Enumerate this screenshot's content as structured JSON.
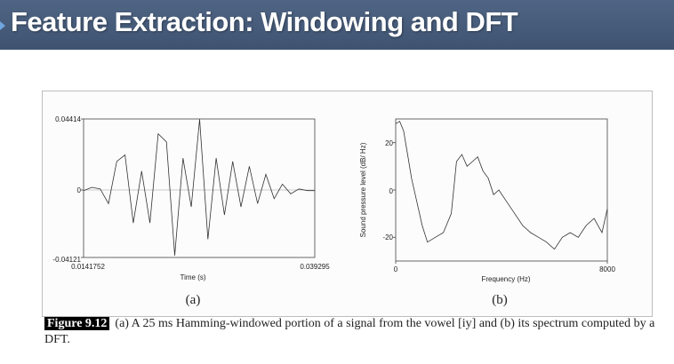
{
  "slide": {
    "title": "Feature Extraction: Windowing and DFT",
    "colors": {
      "title_bar": "#44597a",
      "title_text": "#ffffff"
    }
  },
  "figure": {
    "label": "Figure 9.12",
    "caption": "(a) A 25 ms Hamming-windowed portion of a signal from the vowel [iy] and (b) its spectrum computed by a DFT.",
    "panel_a_label": "(a)",
    "panel_b_label": "(b)"
  },
  "chart_data": [
    {
      "type": "line",
      "title": "",
      "xlabel": "Time (s)",
      "ylabel": "",
      "xlim": [
        0.0141752,
        0.039295
      ],
      "ylim": [
        -0.04121,
        0.04414
      ],
      "x_tick_labels": [
        "0.0141752",
        "0.039295"
      ],
      "y_tick_labels": [
        "0.04414",
        "0",
        "-0.04121"
      ],
      "grid": false,
      "series": [
        {
          "x": [
            0.01418,
            0.01508,
            0.01598,
            0.01688,
            0.01778,
            0.01868,
            0.01958,
            0.02048,
            0.02138,
            0.02228,
            0.02318,
            0.02408,
            0.02498,
            0.02588,
            0.02678,
            0.02768,
            0.02858,
            0.02948,
            0.03038,
            0.03128,
            0.03218,
            0.03308,
            0.03398,
            0.03488,
            0.03578,
            0.03668,
            0.03758,
            0.03848,
            0.0393
          ],
          "y": [
            0.0,
            0.002,
            0.001,
            -0.008,
            0.018,
            0.022,
            -0.02,
            0.012,
            -0.02,
            0.035,
            0.03,
            -0.04,
            0.02,
            -0.01,
            0.044,
            -0.03,
            0.02,
            -0.015,
            0.018,
            -0.01,
            0.015,
            -0.008,
            0.01,
            -0.005,
            0.004,
            -0.002,
            0.001,
            0.0,
            0.0
          ]
        }
      ]
    },
    {
      "type": "line",
      "title": "",
      "xlabel": "Frequency (Hz)",
      "ylabel": "Sound pressure level (dB/ Hz)",
      "xlim": [
        0,
        8000
      ],
      "ylim": [
        -30,
        30
      ],
      "x_tick_labels": [
        "0",
        "8000"
      ],
      "y_tick_labels": [
        "20",
        "0",
        "-20"
      ],
      "grid": false,
      "series": [
        {
          "x": [
            0,
            150,
            300,
            450,
            600,
            800,
            1000,
            1200,
            1500,
            1800,
            2100,
            2300,
            2500,
            2700,
            2900,
            3100,
            3300,
            3500,
            3700,
            3900,
            4200,
            4500,
            4800,
            5100,
            5400,
            5700,
            6000,
            6300,
            6600,
            6900,
            7200,
            7500,
            7800,
            8000
          ],
          "y": [
            28,
            29,
            25,
            15,
            5,
            -5,
            -15,
            -22,
            -20,
            -18,
            -10,
            12,
            15,
            10,
            12,
            14,
            8,
            5,
            -2,
            0,
            -5,
            -10,
            -15,
            -18,
            -20,
            -22,
            -25,
            -20,
            -18,
            -20,
            -15,
            -12,
            -18,
            -8
          ]
        }
      ]
    }
  ]
}
